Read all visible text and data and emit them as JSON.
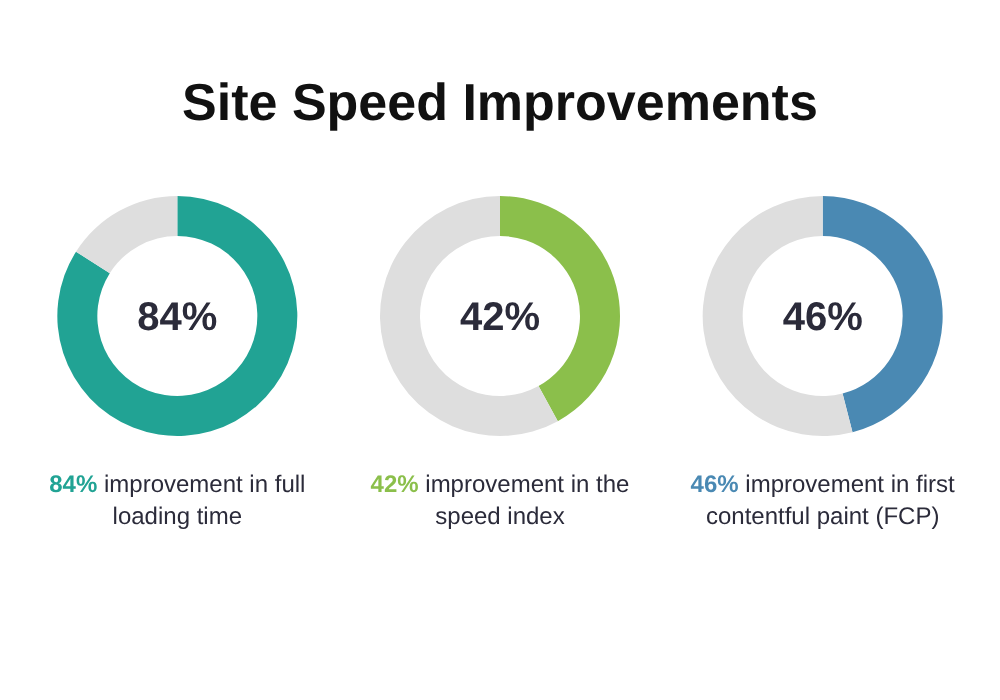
{
  "chart_data": [
    {
      "type": "donut",
      "title": "Site Speed Improvements",
      "categories": [
        null,
        null
      ],
      "values": [
        84,
        16
      ],
      "colors": [
        "#21a394",
        "#dedede"
      ],
      "annotations": [
        "84%",
        "84% improvement in full loading time"
      ]
    },
    {
      "type": "donut",
      "categories": [
        null,
        null
      ],
      "values": [
        42,
        58
      ],
      "colors": [
        "#8bbf4b",
        "#dedede"
      ],
      "annotations": [
        "42%",
        "42% improvement in the speed index"
      ]
    },
    {
      "type": "donut",
      "categories": [
        null,
        null
      ],
      "values": [
        46,
        54
      ],
      "colors": [
        "#4a89b3",
        "#dedede"
      ],
      "annotations": [
        "46%",
        "46% improvement in first contentful paint (FCP)"
      ]
    }
  ]
}
